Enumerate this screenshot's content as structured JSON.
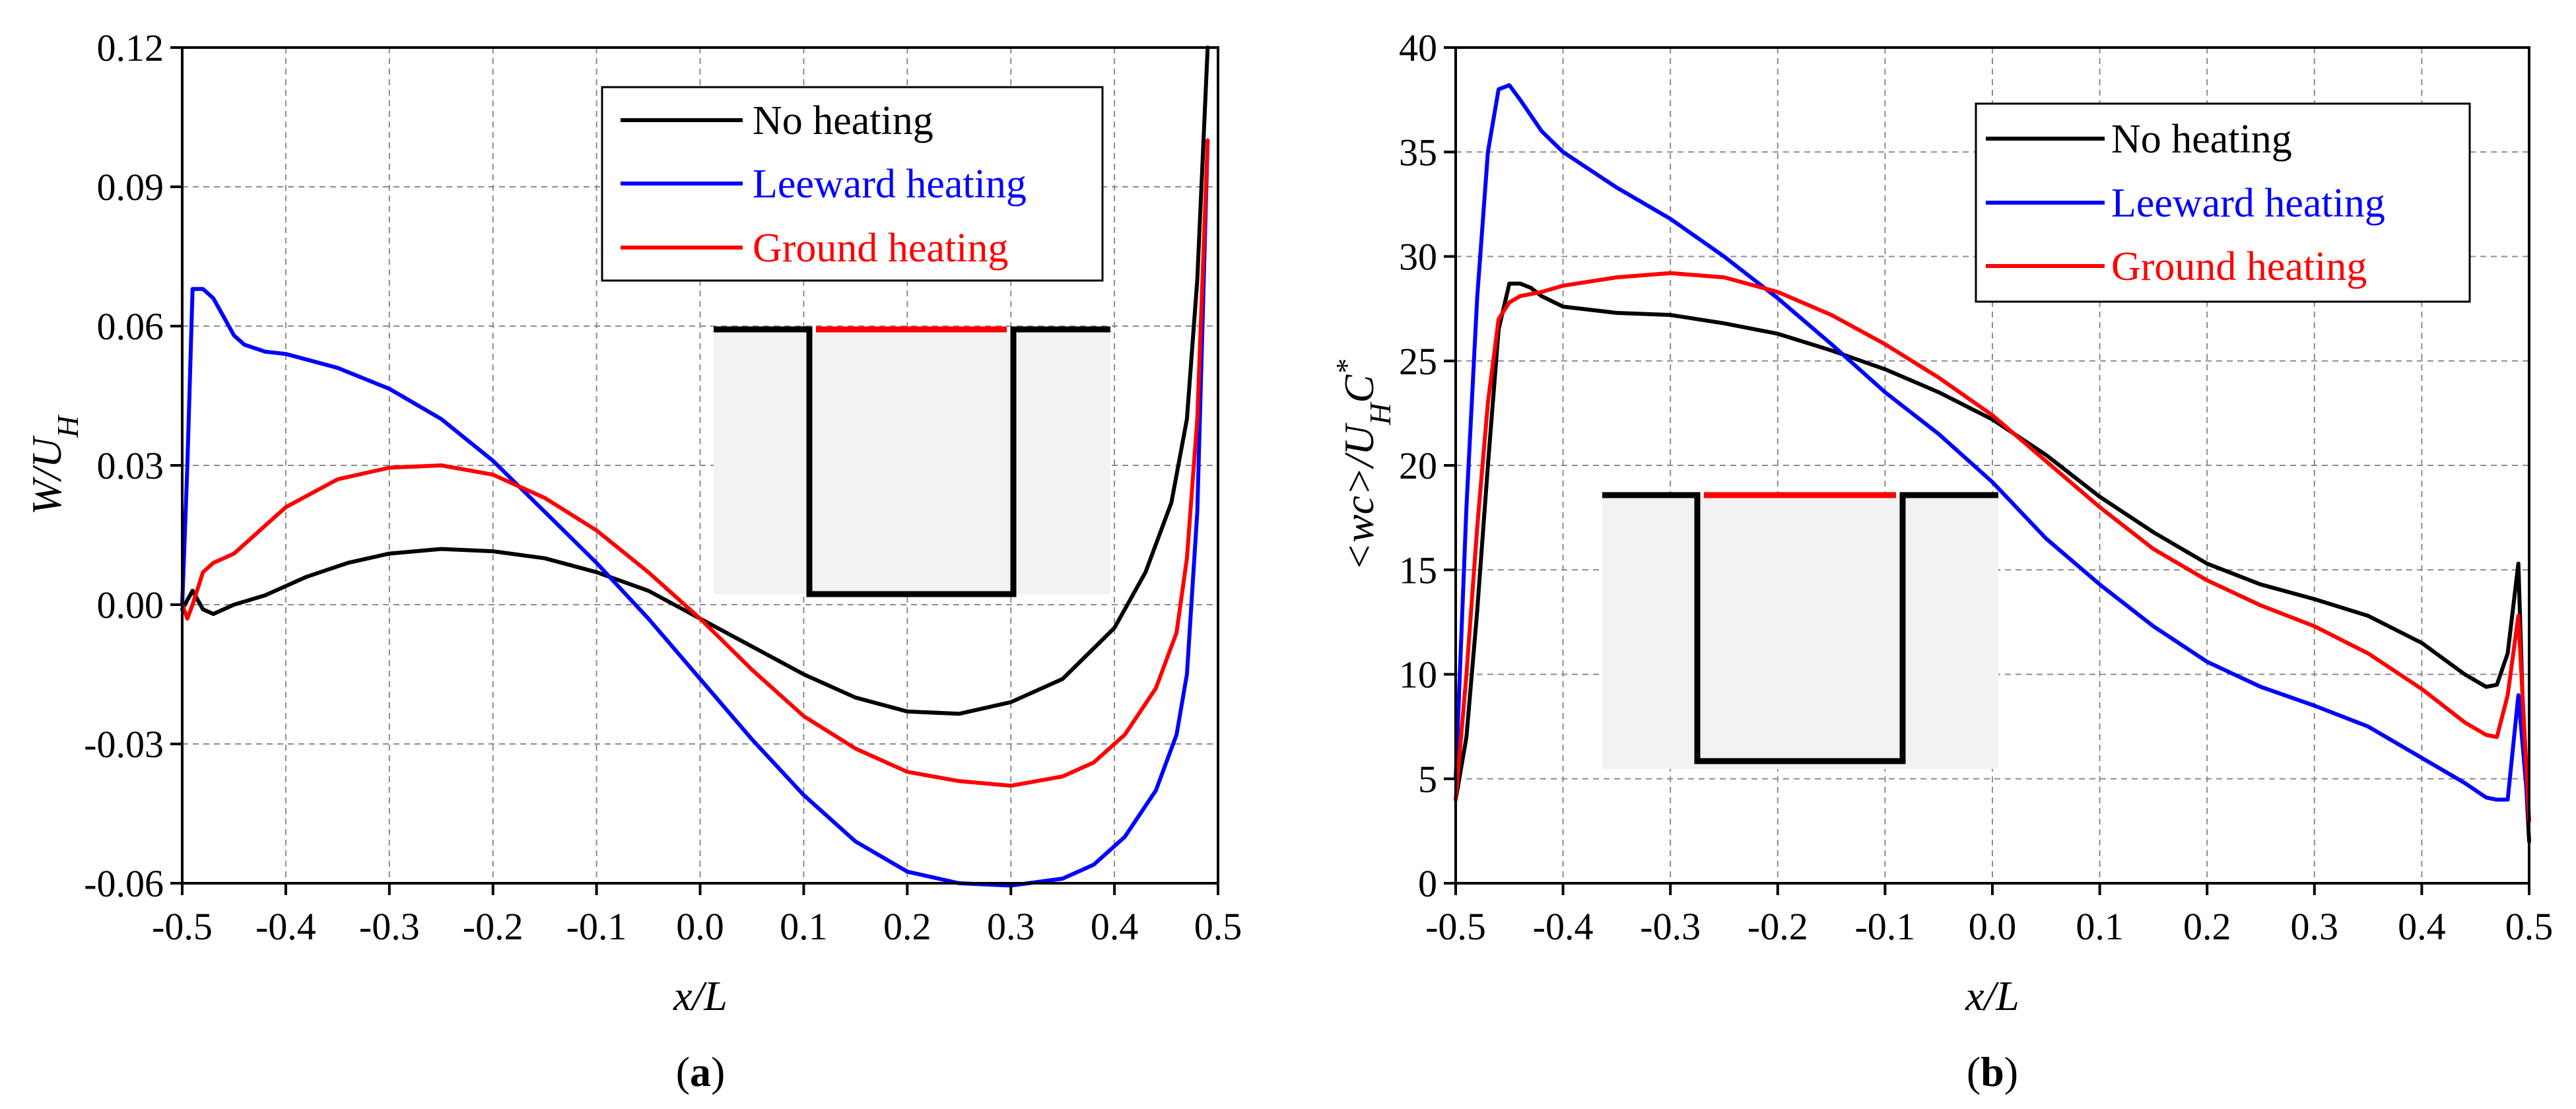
{
  "colors": {
    "no_heating": "#000000",
    "leeward": "#0000ff",
    "ground": "#ff0000",
    "inset_fill": "#f2f2f2",
    "grid": "#8c8c8c"
  },
  "chart_data": [
    {
      "type": "line",
      "panel_label": "a",
      "xlabel": "x/L",
      "ylabel": "W/U_H",
      "xlim": [
        -0.5,
        0.5
      ],
      "ylim": [
        -0.06,
        0.12
      ],
      "xticks": [
        -0.5,
        -0.4,
        -0.3,
        -0.2,
        -0.1,
        0.0,
        0.1,
        0.2,
        0.3,
        0.4,
        0.5
      ],
      "xtick_labels": [
        "-0.5",
        "-0.4",
        "-0.3",
        "-0.2",
        "-0.1",
        "0.0",
        "0.1",
        "0.2",
        "0.3",
        "0.4",
        "0.5"
      ],
      "yticks": [
        -0.06,
        -0.03,
        0.0,
        0.03,
        0.06,
        0.09,
        0.12
      ],
      "ytick_labels": [
        "-0.06",
        "-0.03",
        "0.00",
        "0.03",
        "0.06",
        "0.09",
        "0.12"
      ],
      "grid": true,
      "legend": "top-right",
      "series": [
        {
          "name": "No heating",
          "color": "#000000",
          "x": [
            -0.5,
            -0.49,
            -0.48,
            -0.47,
            -0.45,
            -0.42,
            -0.38,
            -0.34,
            -0.3,
            -0.25,
            -0.2,
            -0.15,
            -0.1,
            -0.05,
            0.0,
            0.05,
            0.1,
            0.15,
            0.2,
            0.25,
            0.3,
            0.35,
            0.4,
            0.43,
            0.455,
            0.47,
            0.48,
            0.49
          ],
          "y": [
            -0.001,
            0.003,
            -0.001,
            -0.002,
            0.0,
            0.002,
            0.006,
            0.009,
            0.011,
            0.012,
            0.0115,
            0.01,
            0.007,
            0.003,
            -0.003,
            -0.009,
            -0.015,
            -0.02,
            -0.023,
            -0.0235,
            -0.021,
            -0.016,
            -0.005,
            0.007,
            0.022,
            0.04,
            0.07,
            0.12
          ]
        },
        {
          "name": "Leeward heating",
          "color": "#0000ff",
          "x": [
            -0.5,
            -0.495,
            -0.49,
            -0.48,
            -0.47,
            -0.46,
            -0.45,
            -0.44,
            -0.42,
            -0.4,
            -0.35,
            -0.3,
            -0.25,
            -0.2,
            -0.15,
            -0.1,
            -0.05,
            0.0,
            0.05,
            0.1,
            0.15,
            0.2,
            0.25,
            0.3,
            0.35,
            0.38,
            0.41,
            0.44,
            0.46,
            0.47,
            0.48,
            0.49
          ],
          "y": [
            0.0,
            0.03,
            0.068,
            0.068,
            0.066,
            0.062,
            0.058,
            0.056,
            0.0545,
            0.054,
            0.051,
            0.0465,
            0.04,
            0.031,
            0.02,
            0.009,
            -0.003,
            -0.016,
            -0.029,
            -0.041,
            -0.051,
            -0.0575,
            -0.06,
            -0.0605,
            -0.059,
            -0.056,
            -0.05,
            -0.04,
            -0.028,
            -0.015,
            0.02,
            0.1
          ]
        },
        {
          "name": "Ground heating",
          "color": "#ff0000",
          "x": [
            -0.5,
            -0.495,
            -0.49,
            -0.48,
            -0.47,
            -0.46,
            -0.45,
            -0.44,
            -0.42,
            -0.4,
            -0.35,
            -0.3,
            -0.25,
            -0.2,
            -0.15,
            -0.1,
            -0.05,
            0.0,
            0.05,
            0.1,
            0.15,
            0.2,
            0.25,
            0.3,
            0.35,
            0.38,
            0.41,
            0.44,
            0.46,
            0.47,
            0.48,
            0.49
          ],
          "y": [
            0.0,
            -0.003,
            0.0,
            0.007,
            0.009,
            0.01,
            0.011,
            0.013,
            0.017,
            0.021,
            0.027,
            0.0295,
            0.03,
            0.028,
            0.023,
            0.016,
            0.007,
            -0.003,
            -0.014,
            -0.024,
            -0.031,
            -0.036,
            -0.038,
            -0.039,
            -0.037,
            -0.034,
            -0.028,
            -0.018,
            -0.006,
            0.01,
            0.04,
            0.1
          ]
        }
      ]
    },
    {
      "type": "line",
      "panel_label": "b",
      "xlabel": "x/L",
      "ylabel": "<wc>/U_H C*",
      "xlim": [
        -0.5,
        0.5
      ],
      "ylim": [
        0,
        40
      ],
      "xticks": [
        -0.5,
        -0.4,
        -0.3,
        -0.2,
        -0.1,
        0.0,
        0.1,
        0.2,
        0.3,
        0.4,
        0.5
      ],
      "xtick_labels": [
        "-0.5",
        "-0.4",
        "-0.3",
        "-0.2",
        "-0.1",
        "0.0",
        "0.1",
        "0.2",
        "0.3",
        "0.4",
        "0.5"
      ],
      "yticks": [
        0,
        5,
        10,
        15,
        20,
        25,
        30,
        35,
        40
      ],
      "ytick_labels": [
        "0",
        "5",
        "10",
        "15",
        "20",
        "25",
        "30",
        "35",
        "40"
      ],
      "grid": true,
      "legend": "top-right",
      "series": [
        {
          "name": "No heating",
          "color": "#000000",
          "x": [
            -0.5,
            -0.49,
            -0.48,
            -0.47,
            -0.46,
            -0.45,
            -0.44,
            -0.43,
            -0.42,
            -0.4,
            -0.35,
            -0.3,
            -0.25,
            -0.2,
            -0.15,
            -0.1,
            -0.05,
            0.0,
            0.05,
            0.1,
            0.15,
            0.2,
            0.25,
            0.3,
            0.35,
            0.4,
            0.44,
            0.46,
            0.47,
            0.48,
            0.49,
            0.495,
            0.5
          ],
          "y": [
            4,
            7,
            13,
            20,
            26.5,
            28.7,
            28.7,
            28.5,
            28.1,
            27.6,
            27.3,
            27.2,
            26.8,
            26.3,
            25.5,
            24.6,
            23.5,
            22.2,
            20.5,
            18.5,
            16.8,
            15.3,
            14.3,
            13.6,
            12.8,
            11.5,
            10.0,
            9.4,
            9.5,
            11.0,
            15.3,
            7,
            2
          ]
        },
        {
          "name": "Leeward heating",
          "color": "#0000ff",
          "x": [
            -0.5,
            -0.49,
            -0.48,
            -0.47,
            -0.46,
            -0.45,
            -0.44,
            -0.42,
            -0.4,
            -0.35,
            -0.3,
            -0.25,
            -0.2,
            -0.15,
            -0.1,
            -0.05,
            0.0,
            0.05,
            0.1,
            0.15,
            0.2,
            0.25,
            0.3,
            0.35,
            0.4,
            0.44,
            0.46,
            0.47,
            0.48,
            0.49,
            0.5
          ],
          "y": [
            5,
            18,
            28,
            35,
            38,
            38.2,
            37.5,
            36,
            35,
            33.3,
            31.8,
            30,
            28,
            25.8,
            23.5,
            21.5,
            19.2,
            16.5,
            14.3,
            12.3,
            10.6,
            9.4,
            8.5,
            7.5,
            6.0,
            4.8,
            4.1,
            4.0,
            4.0,
            9.0,
            3
          ]
        },
        {
          "name": "Ground heating",
          "color": "#ff0000",
          "x": [
            -0.5,
            -0.49,
            -0.48,
            -0.47,
            -0.46,
            -0.45,
            -0.44,
            -0.42,
            -0.4,
            -0.35,
            -0.3,
            -0.25,
            -0.2,
            -0.15,
            -0.1,
            -0.05,
            0.0,
            0.05,
            0.1,
            0.15,
            0.2,
            0.25,
            0.3,
            0.35,
            0.4,
            0.44,
            0.46,
            0.47,
            0.48,
            0.49,
            0.5
          ],
          "y": [
            4,
            10,
            17,
            23,
            27,
            27.8,
            28.1,
            28.3,
            28.6,
            29.0,
            29.2,
            29.0,
            28.3,
            27.2,
            25.8,
            24.2,
            22.4,
            20.2,
            18.0,
            16.0,
            14.5,
            13.3,
            12.3,
            11.0,
            9.3,
            7.7,
            7.1,
            7.0,
            9.0,
            12.8,
            3
          ]
        }
      ]
    }
  ]
}
